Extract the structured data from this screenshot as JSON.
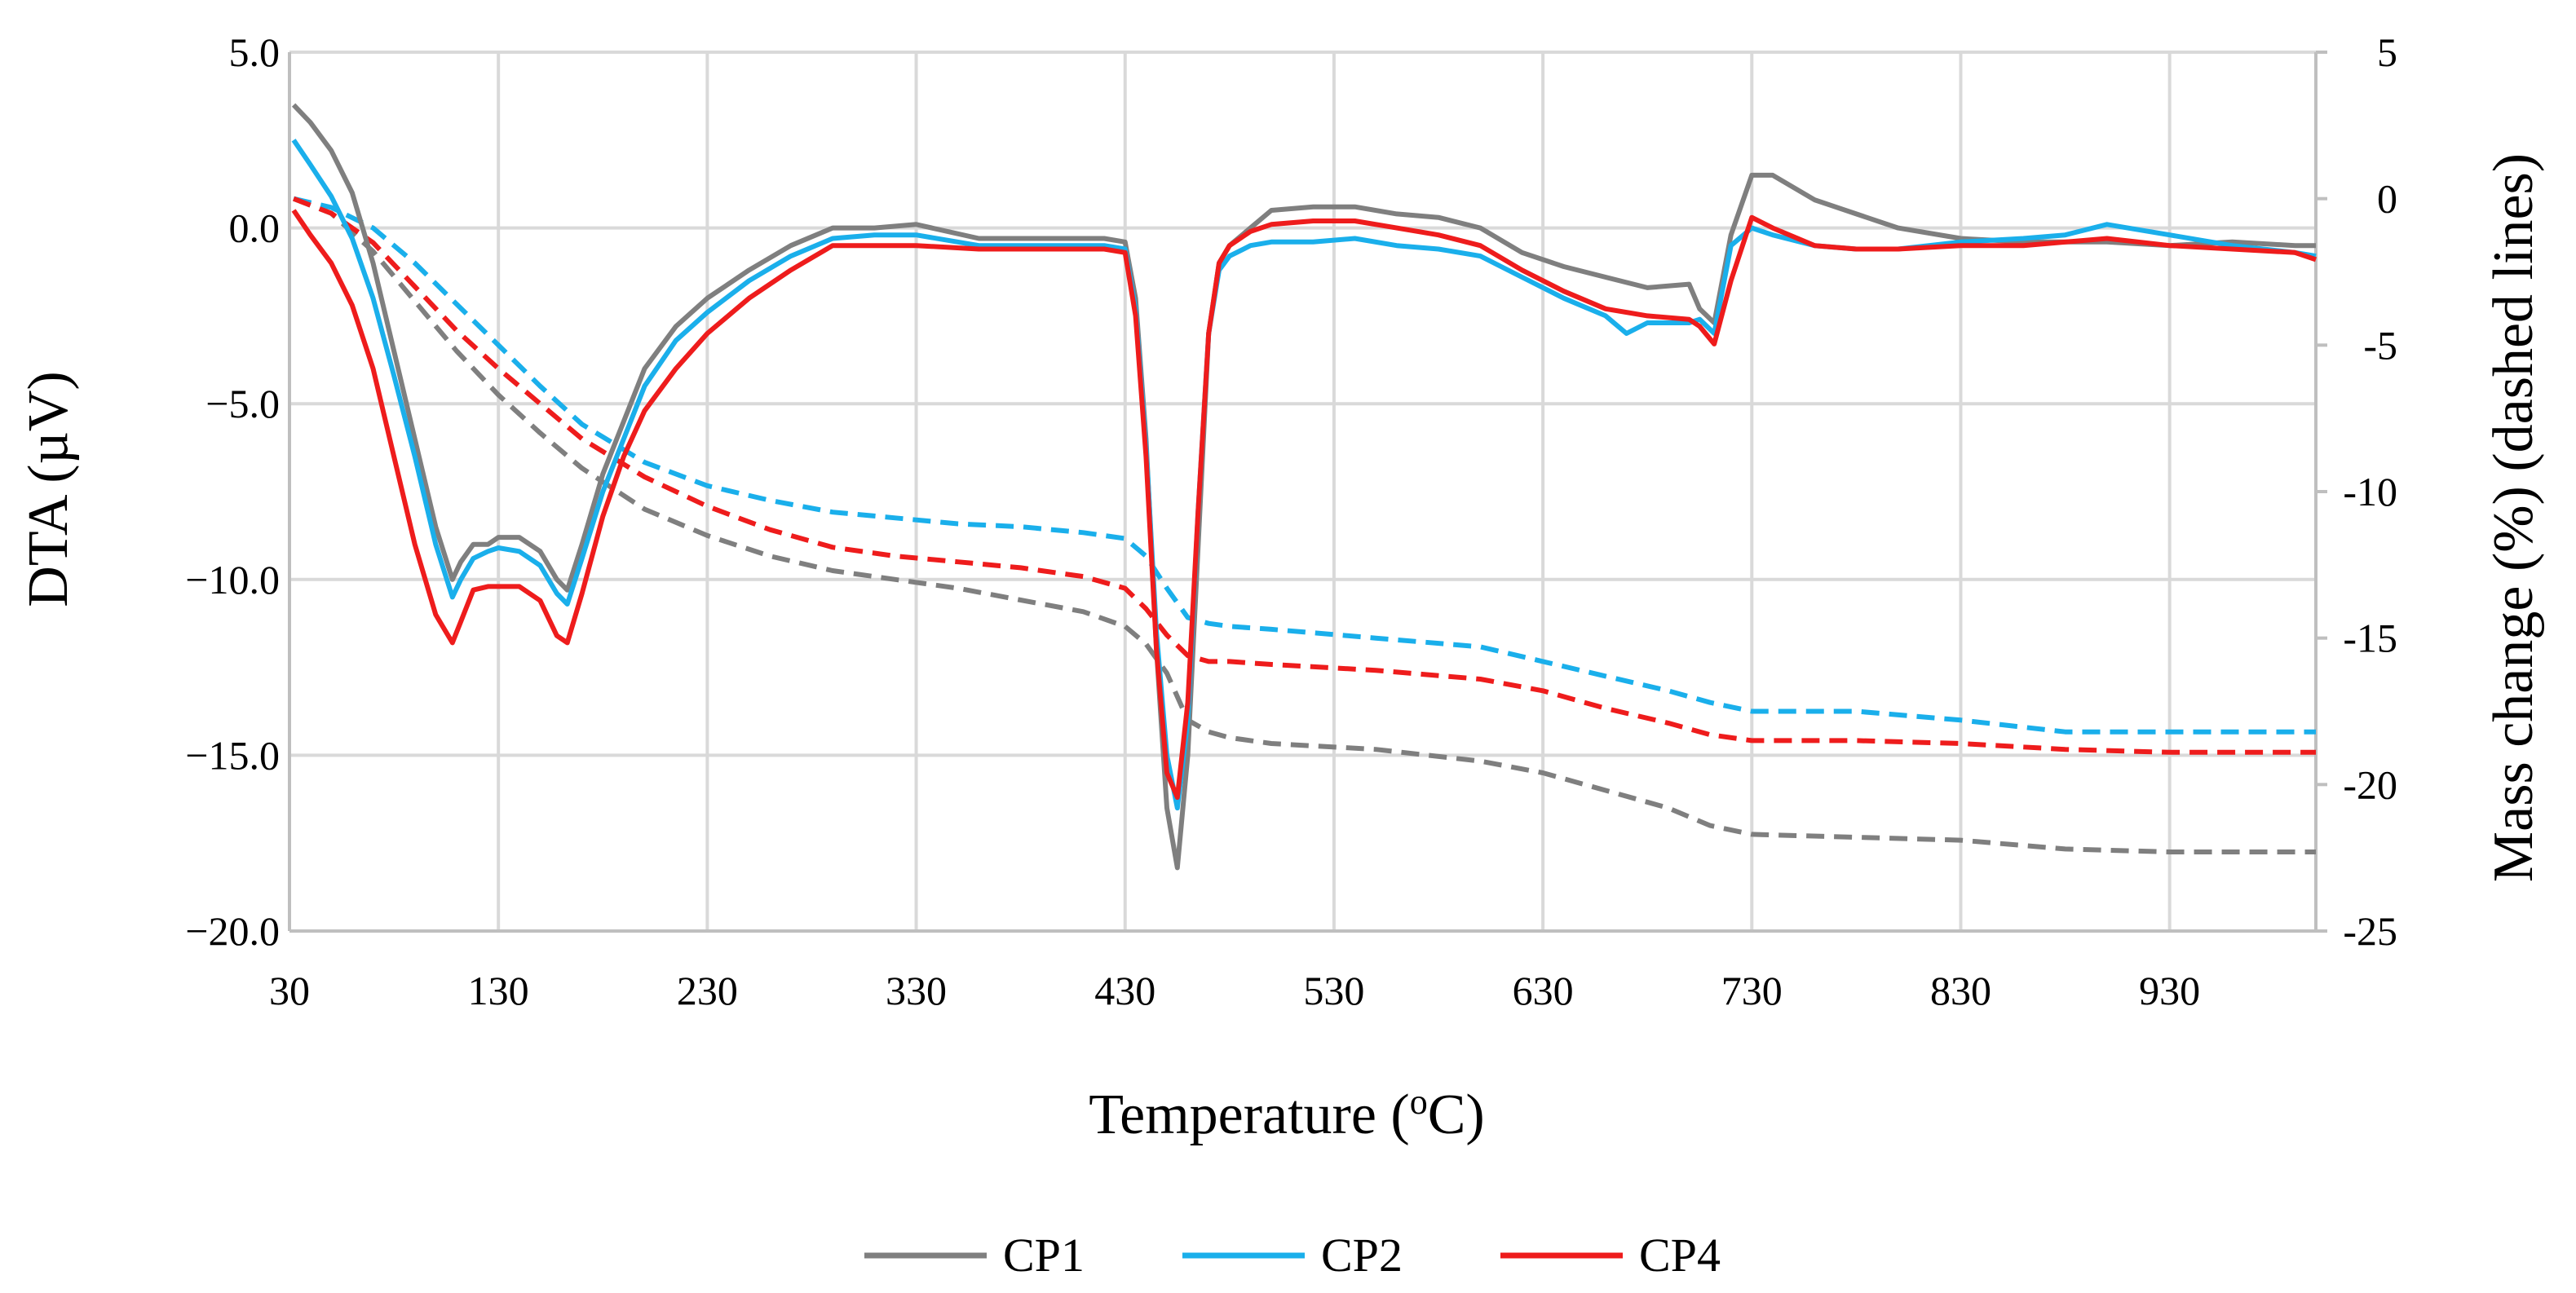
{
  "chart_data": {
    "type": "line",
    "title": "",
    "xlabel_main": "Temperature (",
    "xlabel_sup": "o",
    "xlabel_tail": "C)",
    "ylabel_left": "DTA (µV)",
    "ylabel_right": "Mass change (%) (dashed lines)",
    "xlim": [
      30,
      1000
    ],
    "ylim_left": [
      -20,
      5
    ],
    "ylim_right": [
      -25,
      5
    ],
    "x_ticks": [
      30,
      130,
      230,
      330,
      430,
      530,
      630,
      730,
      830,
      930
    ],
    "x_tick_labels": [
      "30",
      "130",
      "230",
      "330",
      "430",
      "530",
      "630",
      "730",
      "830",
      "930"
    ],
    "y_left_ticks": [
      5,
      0,
      -5,
      -10,
      -15,
      -20
    ],
    "y_left_tick_labels": [
      "5.0",
      "0.0",
      "−5.0",
      "−10.0",
      "−15.0",
      "−20.0"
    ],
    "y_right_ticks": [
      5,
      0,
      -5,
      -10,
      -15,
      -20,
      -25
    ],
    "y_right_tick_labels": [
      "5",
      "0",
      "-5",
      "-10",
      "-15",
      "-20",
      "-25"
    ],
    "grid": true,
    "legend_position": "bottom-center",
    "series": [
      {
        "name": "CP1",
        "color": "#7f7f7f",
        "dta": {
          "x": [
            32,
            40,
            50,
            60,
            70,
            80,
            90,
            100,
            108,
            112,
            118,
            125,
            130,
            140,
            150,
            158,
            163,
            170,
            180,
            190,
            200,
            215,
            230,
            250,
            270,
            290,
            310,
            330,
            360,
            390,
            420,
            430,
            435,
            440,
            445,
            450,
            455,
            460,
            465,
            470,
            475,
            480,
            490,
            500,
            520,
            540,
            560,
            580,
            600,
            620,
            640,
            660,
            680,
            700,
            705,
            712,
            720,
            730,
            740,
            760,
            780,
            800,
            830,
            860,
            900,
            930,
            960,
            990,
            1000
          ],
          "y": [
            3.5,
            3.0,
            2.2,
            1.0,
            -1.0,
            -3.5,
            -6.0,
            -8.5,
            -10.0,
            -9.5,
            -9.0,
            -9.0,
            -8.8,
            -8.8,
            -9.2,
            -10.0,
            -10.3,
            -9.0,
            -7.0,
            -5.5,
            -4.0,
            -2.8,
            -2.0,
            -1.2,
            -0.5,
            0.0,
            0.0,
            0.1,
            -0.3,
            -0.3,
            -0.3,
            -0.4,
            -2.0,
            -6.0,
            -12.0,
            -16.5,
            -18.2,
            -15.0,
            -9.0,
            -3.0,
            -1.0,
            -0.5,
            0.0,
            0.5,
            0.6,
            0.6,
            0.4,
            0.3,
            0.0,
            -0.7,
            -1.1,
            -1.4,
            -1.7,
            -1.6,
            -2.3,
            -2.7,
            -0.2,
            1.5,
            1.5,
            0.8,
            0.4,
            0.0,
            -0.3,
            -0.4,
            -0.4,
            -0.5,
            -0.4,
            -0.5,
            -0.5
          ]
        },
        "mass": {
          "x": [
            32,
            50,
            70,
            90,
            110,
            130,
            150,
            170,
            200,
            230,
            260,
            290,
            320,
            350,
            380,
            410,
            430,
            440,
            450,
            460,
            470,
            480,
            500,
            550,
            600,
            630,
            660,
            690,
            710,
            730,
            780,
            830,
            880,
            930,
            1000
          ],
          "y": [
            0.0,
            -0.5,
            -1.8,
            -3.5,
            -5.2,
            -6.7,
            -8.0,
            -9.2,
            -10.6,
            -11.5,
            -12.2,
            -12.7,
            -13.0,
            -13.3,
            -13.7,
            -14.1,
            -14.6,
            -15.2,
            -16.2,
            -17.8,
            -18.2,
            -18.4,
            -18.6,
            -18.8,
            -19.2,
            -19.6,
            -20.2,
            -20.8,
            -21.4,
            -21.7,
            -21.8,
            -21.9,
            -22.2,
            -22.3,
            -22.3
          ]
        }
      },
      {
        "name": "CP2",
        "color": "#1aafeb",
        "dta": {
          "x": [
            32,
            40,
            50,
            60,
            70,
            80,
            90,
            100,
            108,
            112,
            118,
            125,
            130,
            140,
            150,
            158,
            163,
            170,
            180,
            190,
            200,
            215,
            230,
            250,
            270,
            290,
            310,
            330,
            360,
            390,
            420,
            430,
            435,
            440,
            445,
            450,
            455,
            460,
            465,
            470,
            475,
            480,
            490,
            500,
            520,
            540,
            560,
            580,
            600,
            620,
            640,
            660,
            670,
            680,
            700,
            705,
            712,
            720,
            730,
            740,
            760,
            780,
            800,
            830,
            860,
            880,
            900,
            930,
            960,
            990,
            1000
          ],
          "y": [
            2.5,
            1.8,
            0.9,
            -0.3,
            -2.0,
            -4.2,
            -6.5,
            -9.0,
            -10.5,
            -10.0,
            -9.4,
            -9.2,
            -9.1,
            -9.2,
            -9.6,
            -10.4,
            -10.7,
            -9.4,
            -7.5,
            -6.0,
            -4.5,
            -3.2,
            -2.4,
            -1.5,
            -0.8,
            -0.3,
            -0.2,
            -0.2,
            -0.5,
            -0.5,
            -0.5,
            -0.6,
            -2.3,
            -6.2,
            -11.5,
            -15.0,
            -16.5,
            -14.0,
            -8.0,
            -3.0,
            -1.2,
            -0.8,
            -0.5,
            -0.4,
            -0.4,
            -0.3,
            -0.5,
            -0.6,
            -0.8,
            -1.4,
            -2.0,
            -2.5,
            -3.0,
            -2.7,
            -2.7,
            -2.6,
            -3.0,
            -0.5,
            0.0,
            -0.2,
            -0.5,
            -0.6,
            -0.6,
            -0.4,
            -0.3,
            -0.2,
            0.1,
            -0.2,
            -0.5,
            -0.7,
            -0.8
          ]
        },
        "mass": {
          "x": [
            32,
            50,
            70,
            90,
            110,
            130,
            150,
            170,
            200,
            230,
            260,
            290,
            320,
            350,
            380,
            410,
            430,
            440,
            450,
            460,
            470,
            480,
            500,
            550,
            600,
            630,
            660,
            690,
            710,
            730,
            780,
            830,
            880,
            930,
            1000
          ],
          "y": [
            0.0,
            -0.3,
            -1.0,
            -2.2,
            -3.6,
            -5.0,
            -6.4,
            -7.7,
            -9.0,
            -9.8,
            -10.3,
            -10.7,
            -10.9,
            -11.1,
            -11.2,
            -11.4,
            -11.6,
            -12.2,
            -13.3,
            -14.3,
            -14.5,
            -14.6,
            -14.7,
            -15.0,
            -15.3,
            -15.8,
            -16.3,
            -16.8,
            -17.2,
            -17.5,
            -17.5,
            -17.8,
            -18.2,
            -18.2,
            -18.2
          ]
        }
      },
      {
        "name": "CP4",
        "color": "#ee1c1c",
        "dta": {
          "x": [
            32,
            40,
            50,
            60,
            70,
            80,
            90,
            100,
            108,
            112,
            118,
            125,
            130,
            140,
            150,
            158,
            163,
            170,
            180,
            190,
            200,
            215,
            230,
            250,
            270,
            290,
            310,
            330,
            360,
            390,
            420,
            430,
            435,
            440,
            445,
            450,
            455,
            460,
            465,
            470,
            475,
            480,
            490,
            500,
            520,
            540,
            560,
            580,
            600,
            620,
            640,
            660,
            680,
            700,
            705,
            712,
            720,
            730,
            740,
            760,
            780,
            800,
            830,
            860,
            900,
            930,
            960,
            990,
            1000
          ],
          "y": [
            0.5,
            -0.2,
            -1.0,
            -2.2,
            -4.0,
            -6.5,
            -9.0,
            -11.0,
            -11.8,
            -11.2,
            -10.3,
            -10.2,
            -10.2,
            -10.2,
            -10.6,
            -11.6,
            -11.8,
            -10.4,
            -8.2,
            -6.5,
            -5.2,
            -4.0,
            -3.0,
            -2.0,
            -1.2,
            -0.5,
            -0.5,
            -0.5,
            -0.6,
            -0.6,
            -0.6,
            -0.7,
            -2.5,
            -6.5,
            -12.0,
            -15.5,
            -16.2,
            -13.5,
            -8.0,
            -3.0,
            -1.0,
            -0.5,
            -0.1,
            0.1,
            0.2,
            0.2,
            0.0,
            -0.2,
            -0.5,
            -1.2,
            -1.8,
            -2.3,
            -2.5,
            -2.6,
            -2.8,
            -3.3,
            -1.5,
            0.3,
            0.0,
            -0.5,
            -0.6,
            -0.6,
            -0.5,
            -0.5,
            -0.3,
            -0.5,
            -0.6,
            -0.7,
            -0.9
          ]
        },
        "mass": {
          "x": [
            32,
            50,
            70,
            90,
            110,
            130,
            150,
            170,
            200,
            230,
            260,
            290,
            320,
            350,
            380,
            410,
            430,
            440,
            450,
            460,
            470,
            480,
            500,
            550,
            600,
            630,
            660,
            690,
            710,
            730,
            780,
            830,
            880,
            930,
            1000
          ],
          "y": [
            0.0,
            -0.5,
            -1.5,
            -3.0,
            -4.5,
            -5.8,
            -7.0,
            -8.2,
            -9.5,
            -10.5,
            -11.3,
            -11.9,
            -12.2,
            -12.4,
            -12.6,
            -12.9,
            -13.3,
            -14.0,
            -14.9,
            -15.6,
            -15.8,
            -15.8,
            -15.9,
            -16.1,
            -16.4,
            -16.8,
            -17.4,
            -17.9,
            -18.3,
            -18.5,
            -18.5,
            -18.6,
            -18.8,
            -18.9,
            -18.9
          ]
        }
      }
    ]
  }
}
